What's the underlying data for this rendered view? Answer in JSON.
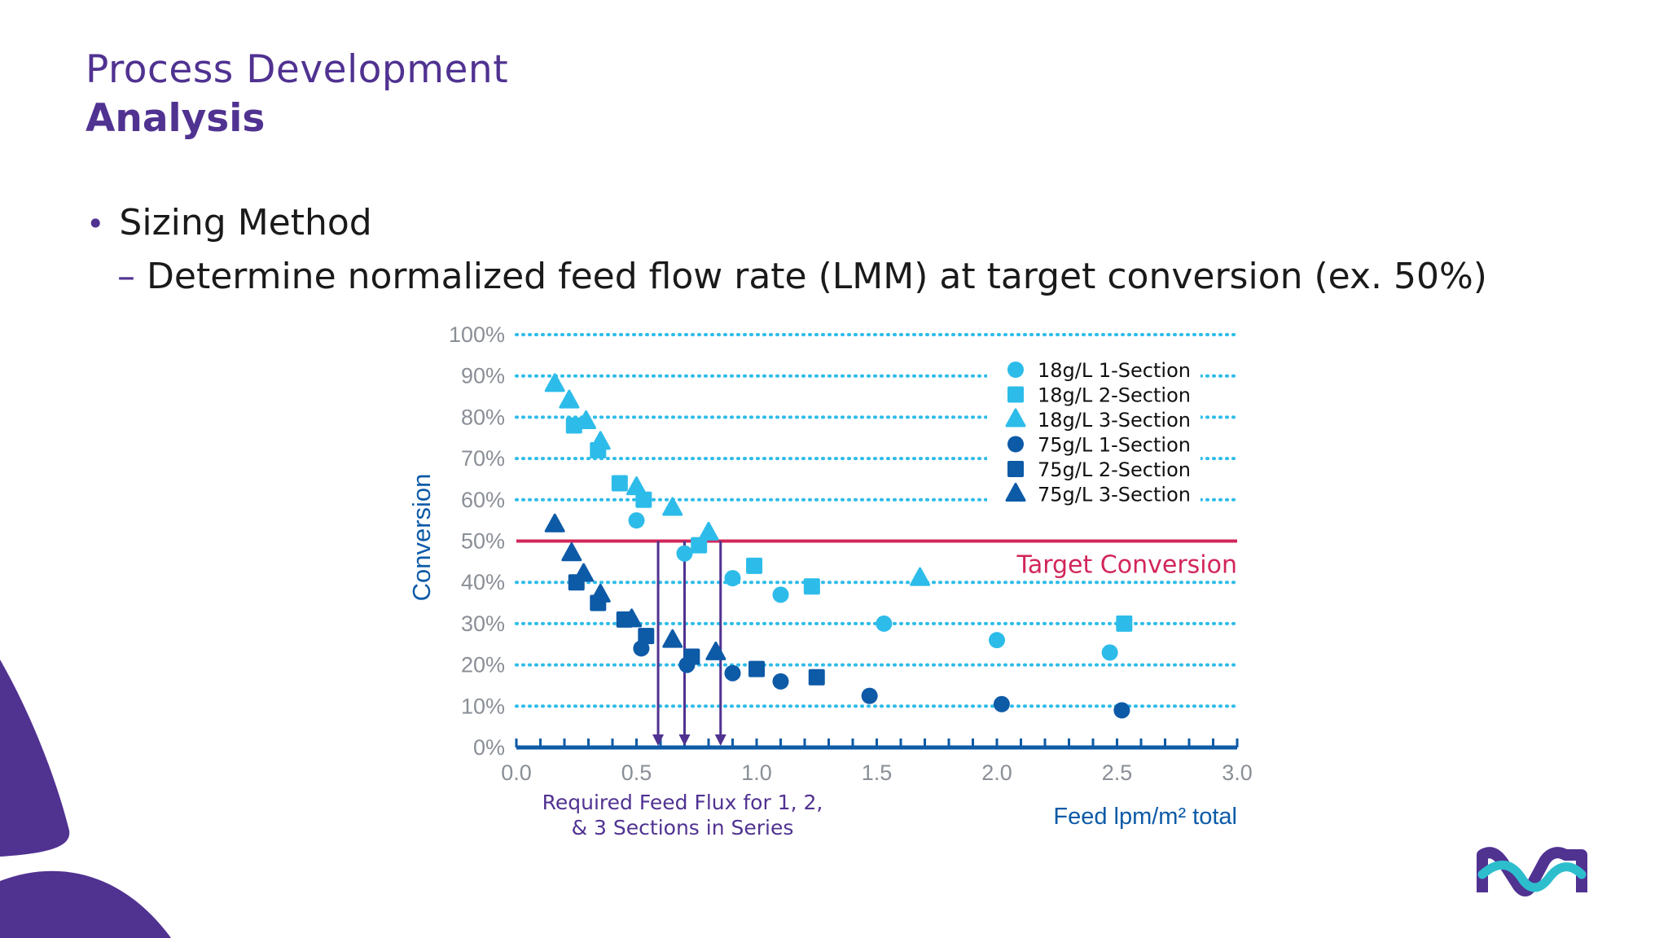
{
  "slide": {
    "title": "Process Development",
    "subtitle": "Analysis",
    "bullet": "Sizing Method",
    "sub_bullet": "Determine normalized feed flow rate (LMM) at target conversion (ex. 50%)"
  },
  "colors": {
    "brand_purple": "#503291",
    "light_blue": "#2dbce9",
    "dark_blue": "#0d5aa7",
    "target_red": "#d2265a",
    "logo_teal": "#2dbecd",
    "arrow_purple": "#503291"
  },
  "chart_data": {
    "type": "scatter",
    "xlabel": "Feed lpm/m² total",
    "ylabel": "Conversion",
    "xlim": [
      0,
      3
    ],
    "ylim": [
      0,
      100
    ],
    "x_ticks": [
      "0.0",
      "0.5",
      "1.0",
      "1.5",
      "2.0",
      "2.5",
      "3.0"
    ],
    "y_ticks": [
      "0%",
      "10%",
      "20%",
      "30%",
      "40%",
      "50%",
      "60%",
      "70%",
      "80%",
      "90%",
      "100%"
    ],
    "grid": "dotted horizontal",
    "legend_position": "top-right",
    "target_line": {
      "y": 50,
      "label": "Target Conversion"
    },
    "annotation": "Required Feed Flux for 1, 2, & 3 Sections in Series",
    "required_flux_arrows": [
      0.59,
      0.7,
      0.85
    ],
    "series": [
      {
        "name": "18g/L 1-Section",
        "marker": "circle",
        "color": "#2dbce9",
        "points": [
          [
            0.5,
            55
          ],
          [
            0.7,
            47
          ],
          [
            0.9,
            41
          ],
          [
            1.1,
            37
          ],
          [
            1.53,
            30
          ],
          [
            2.0,
            26
          ],
          [
            2.47,
            23
          ]
        ]
      },
      {
        "name": "18g/L 2-Section",
        "marker": "square",
        "color": "#2dbce9",
        "points": [
          [
            0.24,
            78
          ],
          [
            0.34,
            72
          ],
          [
            0.43,
            64
          ],
          [
            0.53,
            60
          ],
          [
            0.76,
            49
          ],
          [
            0.99,
            44
          ],
          [
            1.23,
            39
          ],
          [
            2.53,
            30
          ]
        ]
      },
      {
        "name": "18g/L 3-Section",
        "marker": "triangle",
        "color": "#2dbce9",
        "points": [
          [
            0.16,
            88
          ],
          [
            0.22,
            84
          ],
          [
            0.29,
            79
          ],
          [
            0.35,
            74
          ],
          [
            0.5,
            63
          ],
          [
            0.65,
            58
          ],
          [
            0.8,
            52
          ],
          [
            1.68,
            41
          ]
        ]
      },
      {
        "name": "75g/L 1-Section",
        "marker": "circle",
        "color": "#0d5aa7",
        "points": [
          [
            0.52,
            24
          ],
          [
            0.71,
            20
          ],
          [
            0.9,
            18
          ],
          [
            1.1,
            16
          ],
          [
            1.47,
            12.5
          ],
          [
            2.02,
            10.5
          ],
          [
            2.52,
            9
          ]
        ]
      },
      {
        "name": "75g/L 2-Section",
        "marker": "square",
        "color": "#0d5aa7",
        "points": [
          [
            0.25,
            40
          ],
          [
            0.34,
            35
          ],
          [
            0.45,
            31
          ],
          [
            0.54,
            27
          ],
          [
            0.73,
            22
          ],
          [
            1.0,
            19
          ],
          [
            1.25,
            17
          ]
        ]
      },
      {
        "name": "75g/L 3-Section",
        "marker": "triangle",
        "color": "#0d5aa7",
        "points": [
          [
            0.16,
            54
          ],
          [
            0.23,
            47
          ],
          [
            0.28,
            42
          ],
          [
            0.35,
            37
          ],
          [
            0.48,
            31
          ],
          [
            0.65,
            26
          ],
          [
            0.83,
            23
          ]
        ]
      }
    ]
  }
}
